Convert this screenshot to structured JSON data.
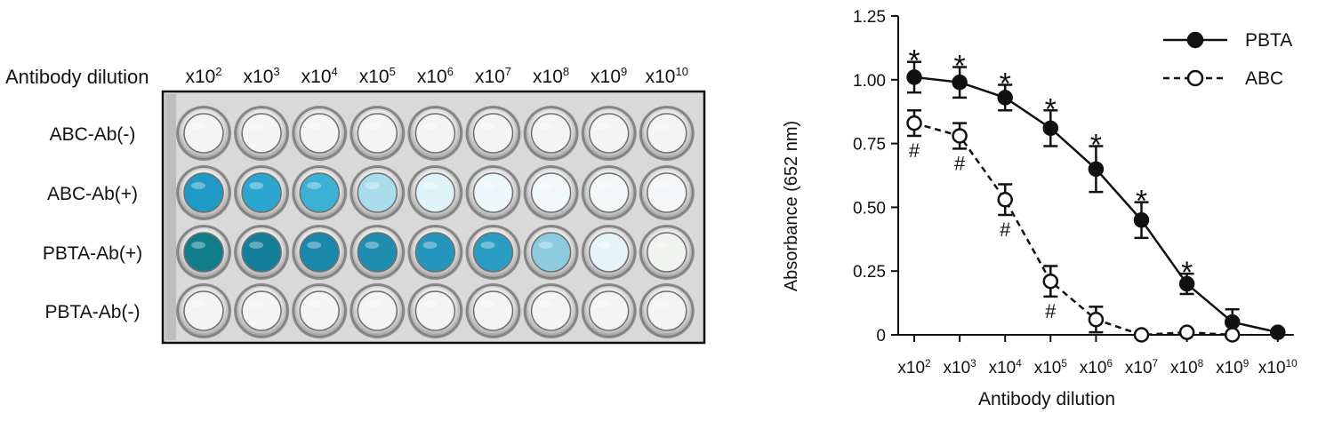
{
  "plate": {
    "header_label": "Antibody dilution",
    "columns": [
      "x10^2",
      "x10^3",
      "x10^4",
      "x10^5",
      "x10^6",
      "x10^7",
      "x10^8",
      "x10^9",
      "x10^10"
    ],
    "rows": [
      {
        "label": "ABC-Ab(-)",
        "well_colors": [
          "#f4f4f4",
          "#f4f4f4",
          "#f4f4f4",
          "#f4f4f4",
          "#f4f4f4",
          "#f4f4f4",
          "#f4f4f4",
          "#f4f4f4",
          "#f4f4f4"
        ]
      },
      {
        "label": "ABC-Ab(+)",
        "well_colors": [
          "#1f9ac4",
          "#2aa6cf",
          "#3db0d6",
          "#a9dcec",
          "#dff2f8",
          "#eef8fb",
          "#f2f8fa",
          "#f3f7f8",
          "#f4f6f7"
        ]
      },
      {
        "label": "PBTA-Ab(+)",
        "well_colors": [
          "#0f7d8a",
          "#137f9a",
          "#1a88aa",
          "#1f8eb0",
          "#2496bd",
          "#2a9dc4",
          "#8ccbe0",
          "#e6f3f6",
          "#f1f3f0"
        ]
      },
      {
        "label": "PBTA-Ab(-)",
        "well_colors": [
          "#f4f4f4",
          "#f4f4f4",
          "#f4f4f4",
          "#f4f4f4",
          "#f4f4f4",
          "#f4f4f4",
          "#f4f4f4",
          "#f4f4f4",
          "#f4f4f4"
        ]
      }
    ]
  },
  "chart_data": {
    "type": "line",
    "xlabel": "Antibody dilution",
    "ylabel": "Absorbance (652 nm)",
    "categories": [
      "x10^2",
      "x10^3",
      "x10^4",
      "x10^5",
      "x10^6",
      "x10^7",
      "x10^8",
      "x10^9",
      "x10^10"
    ],
    "ylim": [
      0,
      1.25
    ],
    "yticks": [
      "0",
      "0.25",
      "0.50",
      "0.75",
      "1.00",
      "1.25"
    ],
    "legend_position": "top-right",
    "series": [
      {
        "name": "PBTA",
        "style": "solid-filled",
        "values": [
          1.01,
          0.99,
          0.93,
          0.81,
          0.65,
          0.45,
          0.2,
          0.05,
          0.01
        ],
        "errors": [
          0.06,
          0.06,
          0.05,
          0.07,
          0.09,
          0.07,
          0.04,
          0.05,
          0.0
        ],
        "markers": [
          "*",
          "*",
          "*",
          "*",
          "*",
          "*",
          "*",
          "",
          ""
        ]
      },
      {
        "name": "ABC",
        "style": "dashed-open",
        "values": [
          0.83,
          0.78,
          0.53,
          0.21,
          0.06,
          0.0,
          0.01,
          0.0,
          null
        ],
        "errors": [
          0.05,
          0.05,
          0.06,
          0.06,
          0.05,
          0.0,
          0.0,
          0.0,
          null
        ],
        "markers": [
          "#",
          "#",
          "#",
          "#",
          "",
          "",
          "",
          "",
          ""
        ]
      }
    ]
  }
}
